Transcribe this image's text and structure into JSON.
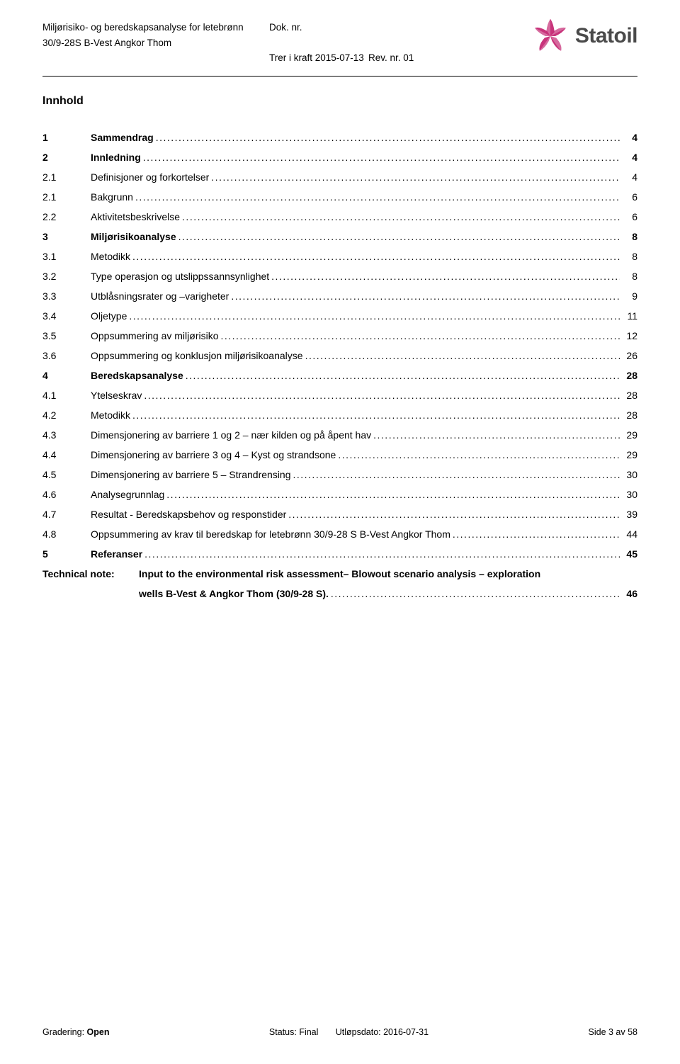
{
  "header": {
    "line1_left": "Miljørisiko- og beredskapsanalyse for letebrønn",
    "line1_right": "Dok. nr.",
    "line2_left": "30/9-28S B-Vest Angkor Thom",
    "line3_mid": "Trer i kraft 2015-07-13",
    "line3_right": "Rev. nr. 01"
  },
  "logo": {
    "text": "Statoil",
    "star_color": "#c52974",
    "text_color": "#4a4a4a"
  },
  "section_title": "Innhold",
  "toc": [
    {
      "num": "1",
      "title": "Sammendrag",
      "page": "4",
      "bold": true,
      "sub": false
    },
    {
      "num": "2",
      "title": "Innledning",
      "page": "4",
      "bold": true,
      "sub": false
    },
    {
      "num": "2.1",
      "title": "Definisjoner og forkortelser",
      "page": "4",
      "bold": false,
      "sub": true
    },
    {
      "num": "2.1",
      "title": "Bakgrunn",
      "page": "6",
      "bold": false,
      "sub": true
    },
    {
      "num": "2.2",
      "title": "Aktivitetsbeskrivelse",
      "page": "6",
      "bold": false,
      "sub": true
    },
    {
      "num": "3",
      "title": "Miljørisikoanalyse",
      "page": "8",
      "bold": true,
      "sub": false
    },
    {
      "num": "3.1",
      "title": "Metodikk",
      "page": "8",
      "bold": false,
      "sub": true
    },
    {
      "num": "3.2",
      "title": "Type operasjon og utslippssannsynlighet",
      "page": "8",
      "bold": false,
      "sub": true
    },
    {
      "num": "3.3",
      "title": "Utblåsningsrater og –varigheter",
      "page": "9",
      "bold": false,
      "sub": true
    },
    {
      "num": "3.4",
      "title": "Oljetype",
      "page": "11",
      "bold": false,
      "sub": true
    },
    {
      "num": "3.5",
      "title": "Oppsummering av miljørisiko",
      "page": "12",
      "bold": false,
      "sub": true
    },
    {
      "num": "3.6",
      "title": "Oppsummering og konklusjon miljørisikoanalyse",
      "page": "26",
      "bold": false,
      "sub": true
    },
    {
      "num": "4",
      "title": "Beredskapsanalyse",
      "page": "28",
      "bold": true,
      "sub": false
    },
    {
      "num": "4.1",
      "title": "Ytelseskrav",
      "page": "28",
      "bold": false,
      "sub": true
    },
    {
      "num": "4.2",
      "title": "Metodikk",
      "page": "28",
      "bold": false,
      "sub": true
    },
    {
      "num": "4.3",
      "title": "Dimensjonering av barriere 1 og 2 – nær kilden og på åpent hav",
      "page": "29",
      "bold": false,
      "sub": true
    },
    {
      "num": "4.4",
      "title": "Dimensjonering av barriere 3 og 4 – Kyst og strandsone",
      "page": "29",
      "bold": false,
      "sub": true
    },
    {
      "num": "4.5",
      "title": "Dimensjonering av barriere 5 – Strandrensing",
      "page": "30",
      "bold": false,
      "sub": true
    },
    {
      "num": "4.6",
      "title": "Analysegrunnlag",
      "page": "30",
      "bold": false,
      "sub": true
    },
    {
      "num": "4.7",
      "title": "Resultat - Beredskapsbehov og responstider",
      "page": "39",
      "bold": false,
      "sub": true
    },
    {
      "num": "4.8",
      "title": "Oppsummering av krav til beredskap for letebrønn 30/9-28 S B-Vest Angkor Thom",
      "page": "44",
      "bold": false,
      "sub": true
    },
    {
      "num": "5",
      "title": "Referanser",
      "page": "45",
      "bold": true,
      "sub": false
    }
  ],
  "technical_note": {
    "label": "Technical note:",
    "line1": "Input to the environmental risk assessment– Blowout scenario analysis – exploration",
    "line2": "wells B-Vest & Angkor Thom (30/9-28 S).",
    "page": "46"
  },
  "footer": {
    "left_label": "Gradering: ",
    "left_value": "Open",
    "mid_label": "Status: ",
    "mid_value": "Final",
    "mid2_label": "Utløpsdato: ",
    "mid2_value": "2016-07-31",
    "right": "Side 3 av 58"
  }
}
